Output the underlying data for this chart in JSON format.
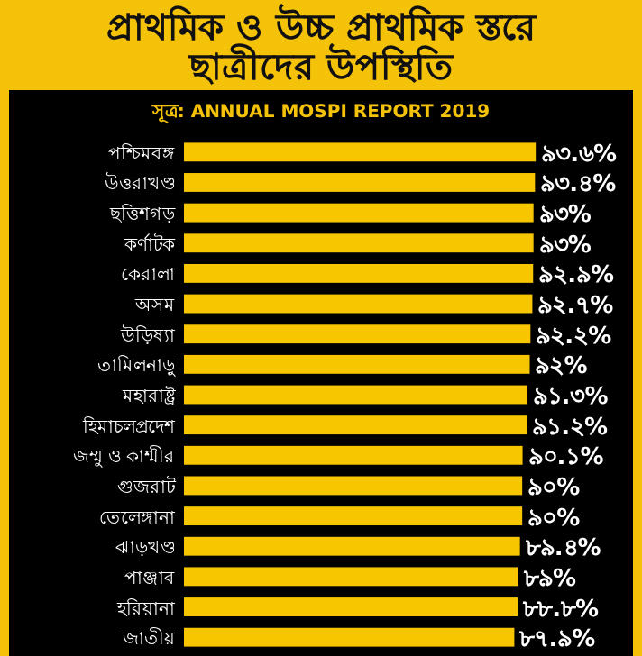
{
  "chart_data": {
    "type": "bar",
    "orientation": "horizontal",
    "title": "প্রাথমিক ও উচ্চ প্রাথমিক স্তরে ছাত্রীদের উপস্থিতি",
    "subtitle": "সূত্র: ANNUAL MOSPI REPORT 2019",
    "categories": [
      "পশ্চিমবঙ্গ",
      "উত্তরাখণ্ড",
      "ছত্তিশগড়",
      "কর্ণাটক",
      "কেরালা",
      "অসম",
      "উড়িষ্যা",
      "তামিলনাড়ু",
      "মহারাষ্ট্র",
      "হিমাচলপ্রদেশ",
      "জম্মু ও কাশ্মীর",
      "গুজরাট",
      "তেলেঙ্গানা",
      "ঝাড়খণ্ড",
      "পাঞ্জাব",
      "হরিয়ানা",
      "জাতীয়"
    ],
    "values": [
      93.6,
      93.4,
      93,
      93,
      92.9,
      92.7,
      92.2,
      92,
      91.3,
      91.2,
      90.1,
      90,
      90,
      89.4,
      89,
      88.8,
      87.9
    ],
    "value_labels": [
      "৯৩.৬%",
      "৯৩.৪%",
      "৯৩%",
      "৯৩%",
      "৯২.৯%",
      "৯২.৭%",
      "৯২.২%",
      "৯২%",
      "৯১.৩%",
      "৯১.২%",
      "৯০.১%",
      "৯০%",
      "৯০%",
      "৮৯.৪%",
      "৮৯%",
      "৮৮.৮%",
      "৮৭.৯%"
    ],
    "color": "#f7c600",
    "tick_labels": "y"
  }
}
